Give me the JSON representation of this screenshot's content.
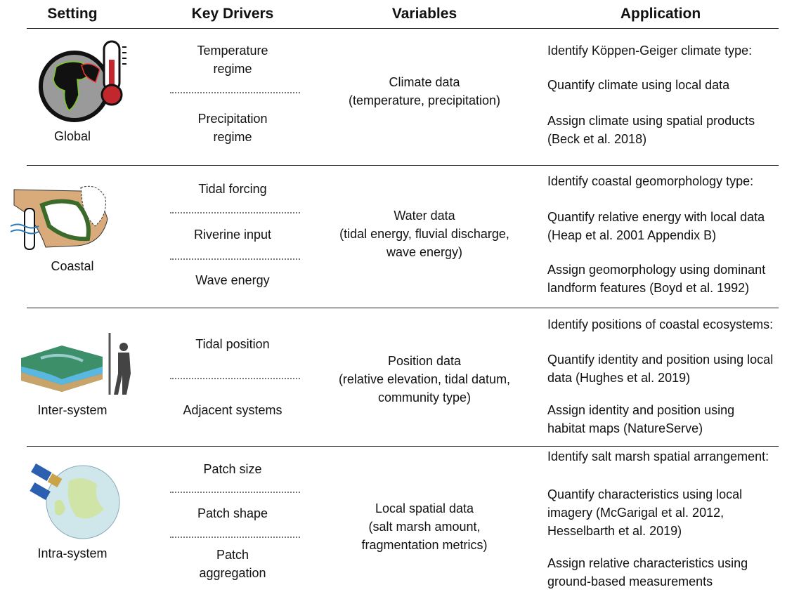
{
  "headers": {
    "setting": "Setting",
    "drivers": "Key Drivers",
    "variables": "Variables",
    "application": "Application"
  },
  "rows": [
    {
      "setting": "Global",
      "drivers": [
        [
          "Temperature",
          "regime"
        ],
        [
          "Precipitation",
          "regime"
        ]
      ],
      "variables": [
        "Climate data",
        "(temperature, precipitation)"
      ],
      "applications": [
        [
          "Identify Köppen-Geiger climate type:"
        ],
        [
          "Quantify climate using local data"
        ],
        [
          "Assign climate using spatial products",
          "(Beck et al. 2018)"
        ]
      ]
    },
    {
      "setting": "Coastal",
      "drivers": [
        [
          "Tidal forcing"
        ],
        [
          "Riverine input"
        ],
        [
          "Wave energy"
        ]
      ],
      "variables": [
        "Water data",
        "(tidal energy, fluvial discharge,",
        "wave energy)"
      ],
      "applications": [
        [
          "Identify coastal geomorphology type:"
        ],
        [
          "Quantify relative energy with local data",
          "(Heap et al. 2001 Appendix B)"
        ],
        [
          "Assign geomorphology using dominant",
          "landform features (Boyd et al. 1992)"
        ]
      ]
    },
    {
      "setting": "Inter-system",
      "drivers": [
        [
          "Tidal position"
        ],
        [
          "Adjacent systems"
        ]
      ],
      "variables": [
        "Position data",
        "(relative elevation, tidal datum,",
        "community type)"
      ],
      "applications": [
        [
          "Identify positions of coastal ecosystems:"
        ],
        [
          "Quantify identity and position using local",
          "data (Hughes et al. 2019)"
        ],
        [
          "Assign identity and position using",
          "habitat maps (NatureServe)"
        ]
      ]
    },
    {
      "setting": "Intra-system",
      "drivers": [
        [
          "Patch size"
        ],
        [
          "Patch shape"
        ],
        [
          "Patch",
          "aggregation"
        ]
      ],
      "variables": [
        "Local spatial data",
        "(salt marsh amount,",
        "fragmentation metrics)"
      ],
      "applications": [
        [
          "Identify salt marsh spatial arrangement:"
        ],
        [
          "Quantify characteristics using local",
          "imagery (McGarigal et al. 2012,",
          "Hesselbarth et al. 2019)"
        ],
        [
          "Assign relative characteristics using",
          "ground-based measurements"
        ]
      ]
    }
  ]
}
